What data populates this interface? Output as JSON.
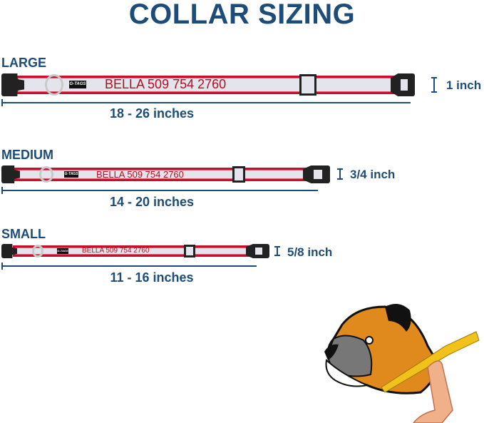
{
  "title": "COLLAR SIZING",
  "brand_tag": "G-TAGS",
  "collar_text": "BELLA 509 754 2760",
  "sizes": [
    {
      "name": "LARGE",
      "width": "1 inch",
      "range": "18 - 26 inches"
    },
    {
      "name": "MEDIUM",
      "width": "3/4 inch",
      "range": "14 - 20 inches"
    },
    {
      "name": "SMALL",
      "width": "5/8 inch",
      "range": "11 - 16 inches"
    }
  ],
  "colors": {
    "heading": "#1d4c78",
    "strap_border": "#c8102e",
    "strap_fill": "#e4e4ec",
    "text": "#b01020"
  },
  "illustration": "boxer-dog-neck-measuring-tape"
}
